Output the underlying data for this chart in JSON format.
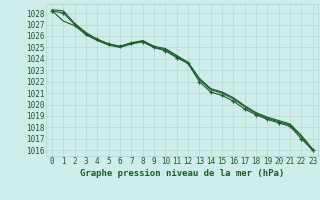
{
  "title": "Graphe pression niveau de la mer (hPa)",
  "bg_color": "#ceecea",
  "grid_color": "#aed4d0",
  "line_color": "#1a5c2a",
  "marker_color": "#1a5c2a",
  "ylim": [
    1015.5,
    1028.8
  ],
  "xlim": [
    -0.5,
    23.5
  ],
  "yticks": [
    1016,
    1017,
    1018,
    1019,
    1020,
    1021,
    1022,
    1023,
    1024,
    1025,
    1026,
    1027,
    1028
  ],
  "xticks": [
    0,
    1,
    2,
    3,
    4,
    5,
    6,
    7,
    8,
    9,
    10,
    11,
    12,
    13,
    14,
    15,
    16,
    17,
    18,
    19,
    20,
    21,
    22,
    23
  ],
  "series": [
    [
      1028.2,
      1027.3,
      1026.9,
      1026.1,
      1025.6,
      1025.2,
      1025.0,
      1025.3,
      1025.5,
      1025.0,
      1024.8,
      1024.2,
      1023.6,
      1022.2,
      1021.3,
      1021.0,
      1020.5,
      1019.8,
      1019.2,
      1018.8,
      1018.5,
      1018.2,
      1017.2,
      1016.0
    ],
    [
      1028.2,
      1028.0,
      1027.0,
      1026.2,
      1025.7,
      1025.3,
      1025.1,
      1025.4,
      1025.5,
      1025.0,
      1024.7,
      1024.1,
      1023.6,
      1022.0,
      1021.1,
      1020.8,
      1020.3,
      1019.6,
      1019.1,
      1018.7,
      1018.4,
      1018.1,
      1017.0,
      1016.0
    ],
    [
      1028.3,
      1028.2,
      1027.1,
      1026.3,
      1025.7,
      1025.3,
      1025.1,
      1025.4,
      1025.6,
      1025.1,
      1024.9,
      1024.3,
      1023.7,
      1022.3,
      1021.4,
      1021.1,
      1020.6,
      1019.9,
      1019.3,
      1018.9,
      1018.6,
      1018.3,
      1017.3,
      1016.1
    ]
  ],
  "marker_series": 1,
  "figsize": [
    3.2,
    2.0
  ],
  "dpi": 100,
  "tick_fontsize": 5.5,
  "xlabel_fontsize": 6.5
}
